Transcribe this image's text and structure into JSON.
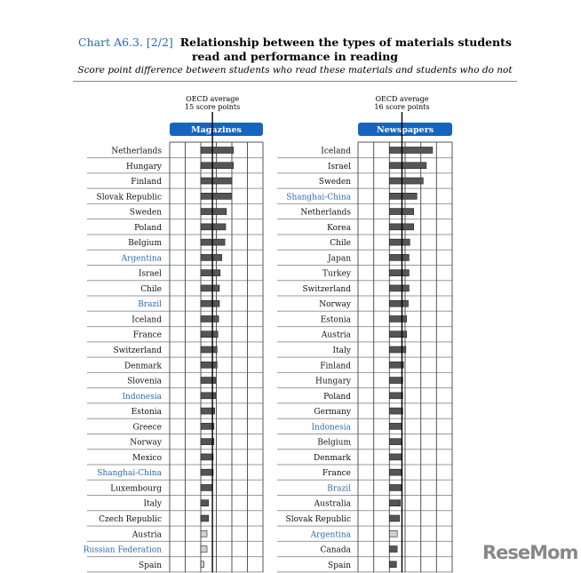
{
  "header": {
    "chart_number": "Chart A6.3. [2/2]",
    "title": "Relationship between the types of materials students read and performance in reading",
    "subtitle": "Score point difference between students who read these materials and students who do not"
  },
  "logo_text": "ReseMom",
  "colors": {
    "bar": "#555555",
    "bar_light": "#d0d0d0",
    "accent": "#1565c0",
    "partner_label": "#2a6ab0"
  },
  "chart_data": [
    {
      "type": "bar",
      "title": "Magazines",
      "oecd_label": [
        "OECD average",
        "15 score points"
      ],
      "oecd_average": 15,
      "xlim": [
        -40,
        80
      ],
      "grid_step": 20,
      "categories": [
        "Netherlands",
        "Hungary",
        "Finland",
        "Slovak Republic",
        "Sweden",
        "Poland",
        "Belgium",
        "Argentina",
        "Israel",
        "Chile",
        "Brazil",
        "Iceland",
        "France",
        "Switzerland",
        "Denmark",
        "Slovenia",
        "Indonesia",
        "Estonia",
        "Greece",
        "Norway",
        "Mexico",
        "Shanghai-China",
        "Luxembourg",
        "Italy",
        "Czech Republic",
        "Austria",
        "Russian Federation",
        "Spain"
      ],
      "values": [
        42,
        42,
        40,
        39,
        33,
        32,
        31,
        27,
        25,
        24,
        24,
        23,
        22,
        21,
        21,
        19,
        19,
        18,
        17,
        17,
        16,
        16,
        15,
        10,
        10,
        8,
        8,
        4
      ],
      "partner": [
        "Argentina",
        "Brazil",
        "Indonesia",
        "Shanghai-China",
        "Russian Federation"
      ],
      "not_significant": [
        "Austria",
        "Russian Federation",
        "Spain"
      ]
    },
    {
      "type": "bar",
      "title": "Newspapers",
      "oecd_label": [
        "OECD average",
        "16 score points"
      ],
      "oecd_average": 16,
      "xlim": [
        -40,
        80
      ],
      "grid_step": 20,
      "categories": [
        "Iceland",
        "Israel",
        "Sweden",
        "Shanghai-China",
        "Netherlands",
        "Korea",
        "Chile",
        "Japan",
        "Turkey",
        "Switzerland",
        "Norway",
        "Estonia",
        "Austria",
        "Italy",
        "Finland",
        "Hungary",
        "Poland",
        "Germany",
        "Indonesia",
        "Belgium",
        "Denmark",
        "France",
        "Brazil",
        "Australia",
        "Slovak Republic",
        "Argentina",
        "Canada",
        "Spain"
      ],
      "values": [
        55,
        47,
        43,
        35,
        31,
        31,
        26,
        25,
        25,
        25,
        24,
        22,
        22,
        21,
        18,
        17,
        17,
        17,
        16,
        16,
        16,
        15,
        15,
        14,
        13,
        10,
        10,
        9
      ],
      "partner": [
        "Shanghai-China",
        "Indonesia",
        "Brazil",
        "Argentina"
      ],
      "not_significant": [
        "Argentina"
      ]
    }
  ]
}
